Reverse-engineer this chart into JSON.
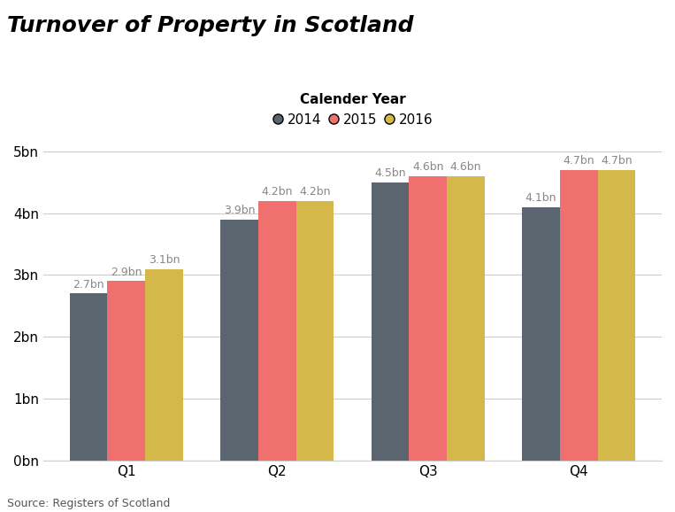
{
  "title": "Turnover of Property in Scotland",
  "legend_title": "Calender Year",
  "categories": [
    "Q1",
    "Q2",
    "Q3",
    "Q4"
  ],
  "series": {
    "2014": [
      2.7,
      3.9,
      4.5,
      4.1
    ],
    "2015": [
      2.9,
      4.2,
      4.6,
      4.7
    ],
    "2016": [
      3.1,
      4.2,
      4.6,
      4.7
    ]
  },
  "bar_colors": {
    "2014": "#5a6570",
    "2015": "#f07070",
    "2016": "#d4b84a"
  },
  "bar_labels": {
    "2014": [
      "2.7bn",
      "3.9bn",
      "4.5bn",
      "4.1bn"
    ],
    "2015": [
      "2.9bn",
      "4.2bn",
      "4.6bn",
      "4.7bn"
    ],
    "2016": [
      "3.1bn",
      "4.2bn",
      "4.6bn",
      "4.7bn"
    ]
  },
  "yticks": [
    0,
    1,
    2,
    3,
    4,
    5
  ],
  "ytick_labels": [
    "0bn",
    "1bn",
    "2bn",
    "3bn",
    "4bn",
    "5bn"
  ],
  "ylim": [
    0,
    5.2
  ],
  "source": "Source: Registers of Scotland",
  "background_color": "#ffffff",
  "grid_color": "#cccccc",
  "title_fontsize": 18,
  "label_fontsize": 9,
  "tick_fontsize": 11,
  "legend_fontsize": 11,
  "bar_width": 0.25,
  "legend_markers": [
    "#5a6570",
    "#f07070",
    "#d4b84a"
  ],
  "legend_labels": [
    "2014",
    "2015",
    "2016"
  ]
}
